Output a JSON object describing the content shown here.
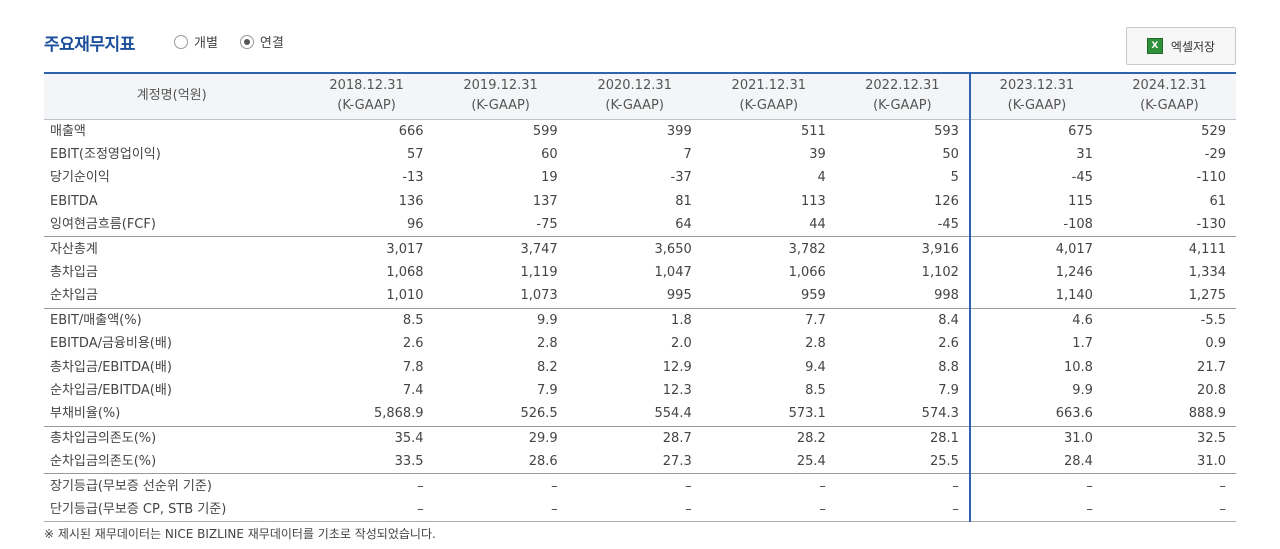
{
  "header": {
    "title": "주요재무지표",
    "radio_individual": "개별",
    "radio_consolidated": "연결",
    "excel_button": "엑셀저장"
  },
  "table": {
    "label_header": "계정명(억원)",
    "columns": [
      {
        "date": "2018.12.31",
        "basis": "(K-GAAP)"
      },
      {
        "date": "2019.12.31",
        "basis": "(K-GAAP)"
      },
      {
        "date": "2020.12.31",
        "basis": "(K-GAAP)"
      },
      {
        "date": "2021.12.31",
        "basis": "(K-GAAP)"
      },
      {
        "date": "2022.12.31",
        "basis": "(K-GAAP)"
      },
      {
        "date": "2023.12.31",
        "basis": "(K-GAAP)"
      },
      {
        "date": "2024.12.31",
        "basis": "(K-GAAP)"
      }
    ],
    "rows": [
      {
        "label": "매출액",
        "values": [
          "666",
          "599",
          "399",
          "511",
          "593",
          "675",
          "529"
        ]
      },
      {
        "label": "EBIT(조정영업이익)",
        "values": [
          "57",
          "60",
          "7",
          "39",
          "50",
          "31",
          "-29"
        ]
      },
      {
        "label": "당기순이익",
        "values": [
          "-13",
          "19",
          "-37",
          "4",
          "5",
          "-45",
          "-110"
        ]
      },
      {
        "label": "EBITDA",
        "values": [
          "136",
          "137",
          "81",
          "113",
          "126",
          "115",
          "61"
        ]
      },
      {
        "label": "잉여현금흐름(FCF)",
        "values": [
          "96",
          "-75",
          "64",
          "44",
          "-45",
          "-108",
          "-130"
        ]
      },
      {
        "label": "자산총계",
        "values": [
          "3,017",
          "3,747",
          "3,650",
          "3,782",
          "3,916",
          "4,017",
          "4,111"
        ]
      },
      {
        "label": "총차입금",
        "values": [
          "1,068",
          "1,119",
          "1,047",
          "1,066",
          "1,102",
          "1,246",
          "1,334"
        ]
      },
      {
        "label": "순차입금",
        "values": [
          "1,010",
          "1,073",
          "995",
          "959",
          "998",
          "1,140",
          "1,275"
        ]
      },
      {
        "label": "EBIT/매출액(%)",
        "values": [
          "8.5",
          "9.9",
          "1.8",
          "7.7",
          "8.4",
          "4.6",
          "-5.5"
        ]
      },
      {
        "label": "EBITDA/금융비용(배)",
        "values": [
          "2.6",
          "2.8",
          "2.0",
          "2.8",
          "2.6",
          "1.7",
          "0.9"
        ]
      },
      {
        "label": "총차입금/EBITDA(배)",
        "values": [
          "7.8",
          "8.2",
          "12.9",
          "9.4",
          "8.8",
          "10.8",
          "21.7"
        ]
      },
      {
        "label": "순차입금/EBITDA(배)",
        "values": [
          "7.4",
          "7.9",
          "12.3",
          "8.5",
          "7.9",
          "9.9",
          "20.8"
        ]
      },
      {
        "label": "부채비율(%)",
        "values": [
          "5,868.9",
          "526.5",
          "554.4",
          "573.1",
          "574.3",
          "663.6",
          "888.9"
        ]
      },
      {
        "label": "총차입금의존도(%)",
        "values": [
          "35.4",
          "29.9",
          "28.7",
          "28.2",
          "28.1",
          "31.0",
          "32.5"
        ]
      },
      {
        "label": "순차입금의존도(%)",
        "values": [
          "33.5",
          "28.6",
          "27.3",
          "25.4",
          "25.5",
          "28.4",
          "31.0"
        ]
      },
      {
        "label": "장기등급(무보증 선순위 기준)",
        "values": [
          "–",
          "–",
          "–",
          "–",
          "–",
          "–",
          "–"
        ]
      },
      {
        "label": "단기등급(무보증 CP, STB 기준)",
        "values": [
          "–",
          "–",
          "–",
          "–",
          "–",
          "–",
          "–"
        ]
      }
    ]
  },
  "footnote": "※ 제시된 재무데이터는 NICE BIZLINE 재무데이터를 기초로 작성되었습니다."
}
